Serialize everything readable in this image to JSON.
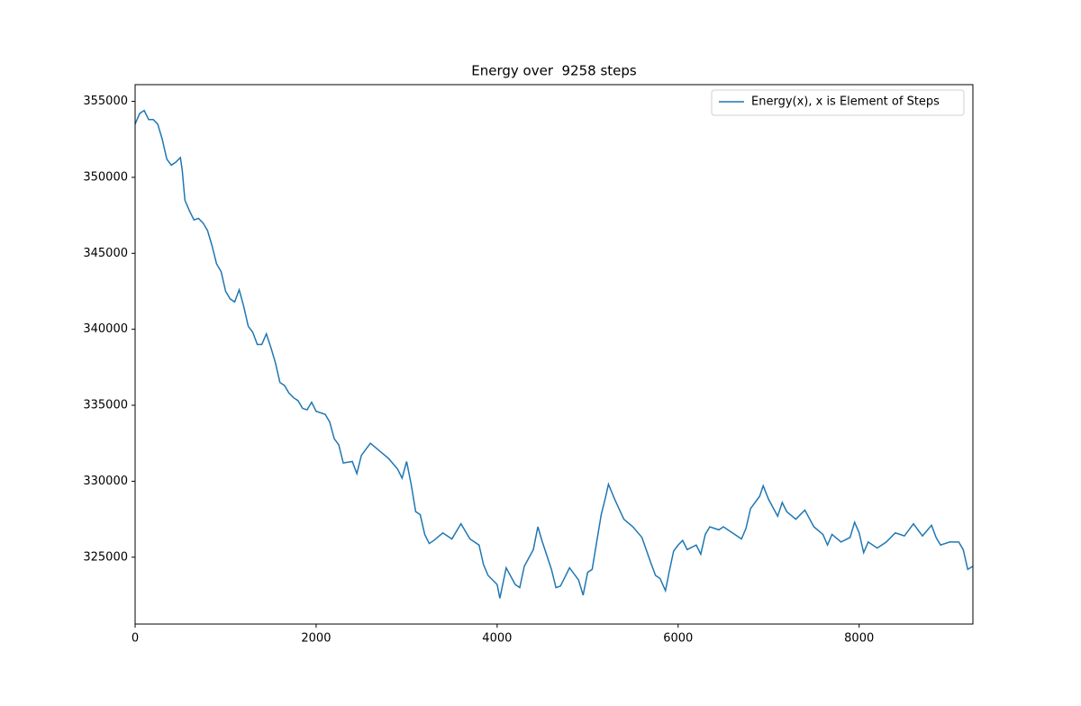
{
  "chart_data": {
    "type": "line",
    "title": "Energy over  9258 steps",
    "x": [
      0,
      50,
      100,
      150,
      200,
      250,
      300,
      350,
      400,
      450,
      500,
      520,
      550,
      600,
      650,
      700,
      750,
      800,
      850,
      900,
      950,
      1000,
      1050,
      1100,
      1150,
      1200,
      1250,
      1300,
      1350,
      1400,
      1450,
      1500,
      1550,
      1600,
      1650,
      1700,
      1750,
      1800,
      1850,
      1900,
      1950,
      2000,
      2100,
      2150,
      2200,
      2250,
      2300,
      2400,
      2450,
      2500,
      2600,
      2700,
      2800,
      2900,
      2950,
      3000,
      3050,
      3100,
      3150,
      3200,
      3250,
      3300,
      3400,
      3500,
      3600,
      3700,
      3800,
      3850,
      3900,
      4000,
      4030,
      4100,
      4200,
      4250,
      4300,
      4400,
      4450,
      4500,
      4600,
      4650,
      4700,
      4800,
      4900,
      4950,
      5000,
      5050,
      5100,
      5150,
      5200,
      5230,
      5300,
      5400,
      5500,
      5600,
      5700,
      5750,
      5800,
      5860,
      5900,
      5950,
      6000,
      6050,
      6100,
      6200,
      6250,
      6300,
      6350,
      6450,
      6500,
      6600,
      6700,
      6750,
      6800,
      6900,
      6940,
      7000,
      7100,
      7150,
      7200,
      7300,
      7400,
      7500,
      7600,
      7650,
      7700,
      7800,
      7900,
      7950,
      8000,
      8050,
      8100,
      8200,
      8300,
      8400,
      8500,
      8600,
      8700,
      8800,
      8850,
      8900,
      9000,
      9100,
      9150,
      9200,
      9257
    ],
    "series": [
      {
        "name": "Energy(x), x is Element of Steps",
        "color": "#1f77b4",
        "values": [
          353500,
          354200,
          354400,
          353800,
          353800,
          353500,
          352500,
          351200,
          350800,
          351000,
          351300,
          350500,
          348500,
          347800,
          347200,
          347300,
          347000,
          346500,
          345500,
          344300,
          343800,
          342500,
          342000,
          341800,
          342600,
          341500,
          340200,
          339800,
          339000,
          339000,
          339700,
          338800,
          337800,
          336500,
          336300,
          335800,
          335500,
          335300,
          334800,
          334700,
          335200,
          334600,
          334400,
          333900,
          332800,
          332400,
          331200,
          331300,
          330500,
          331700,
          332500,
          332000,
          331500,
          330800,
          330200,
          331300,
          329800,
          328000,
          327800,
          326500,
          325900,
          326100,
          326600,
          326200,
          327200,
          326200,
          325800,
          324500,
          323800,
          323200,
          322300,
          324300,
          323200,
          323000,
          324400,
          325500,
          327000,
          326000,
          324200,
          323000,
          323100,
          324300,
          323500,
          322500,
          324000,
          324200,
          326000,
          327800,
          329000,
          329800,
          328800,
          327500,
          327000,
          326300,
          324600,
          323800,
          323600,
          322800,
          324000,
          325400,
          325800,
          326100,
          325500,
          325800,
          325200,
          326500,
          327000,
          326800,
          327000,
          326600,
          326200,
          326900,
          328200,
          329000,
          329700,
          328800,
          327700,
          328600,
          328000,
          327500,
          328100,
          327000,
          326500,
          325800,
          326500,
          326000,
          326300,
          327300,
          326600,
          325300,
          326000,
          325600,
          326000,
          326600,
          326400,
          327200,
          326400,
          327100,
          326300,
          325800,
          326000,
          326000,
          325500,
          324200,
          324400
        ]
      }
    ],
    "xlim": [
      0,
      9257
    ],
    "ylim": [
      320600,
      356100
    ],
    "xticks": [
      0,
      2000,
      4000,
      6000,
      8000
    ],
    "yticks": [
      325000,
      330000,
      335000,
      340000,
      345000,
      350000,
      355000
    ],
    "legend": "upper right"
  }
}
